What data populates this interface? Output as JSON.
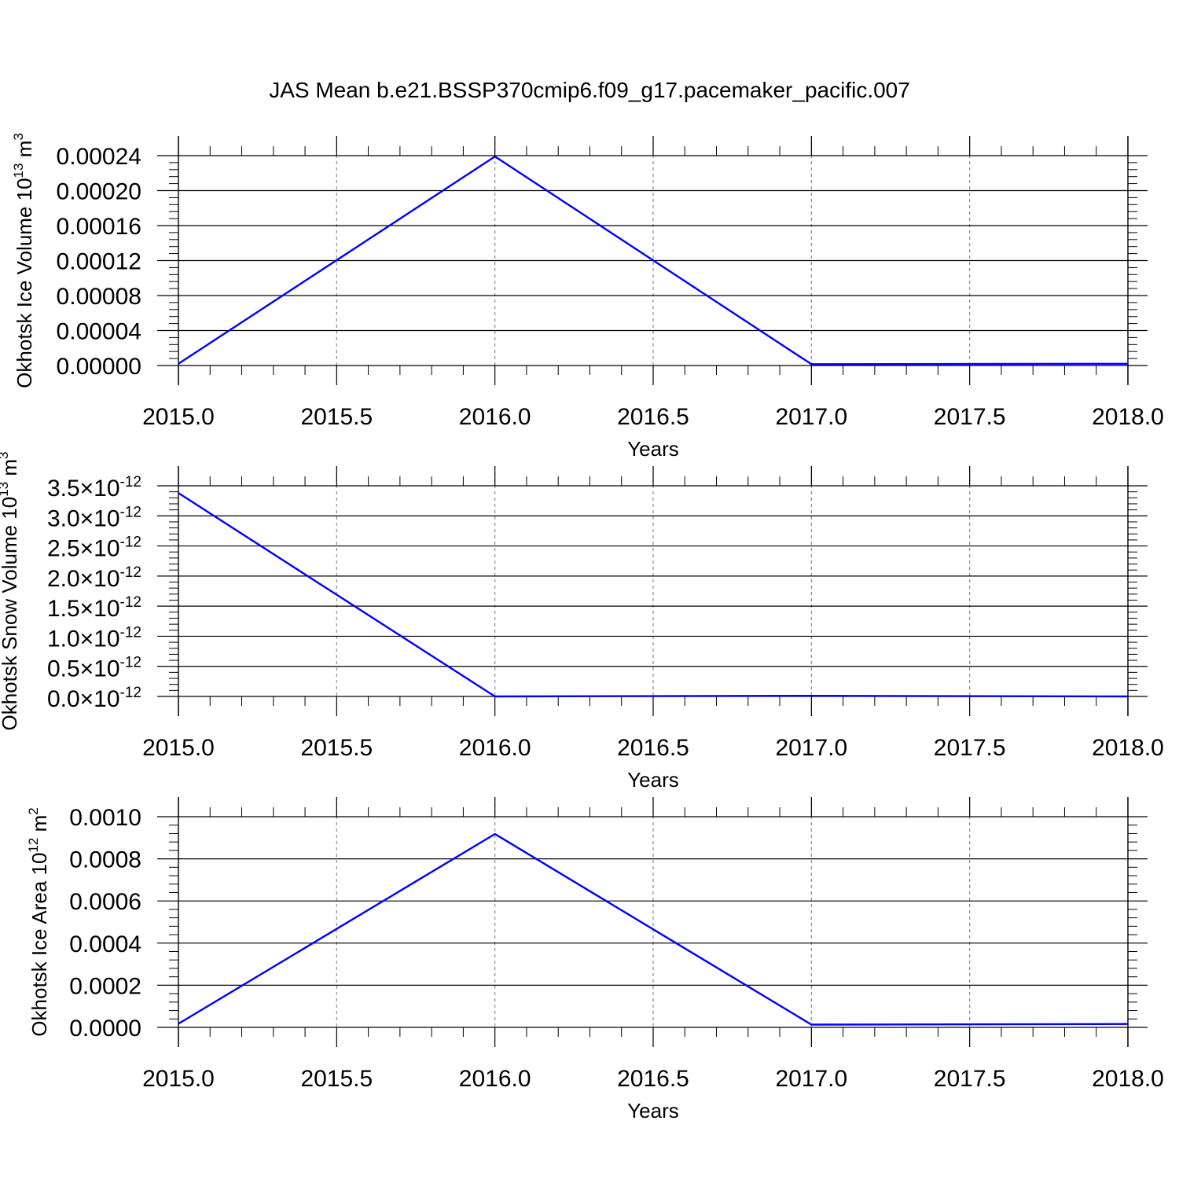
{
  "title": "JAS Mean b.e21.BSSP370cmip6.f09_g17.pacemaker_pacific.007",
  "line_color": "#0000ff",
  "chart_data": [
    {
      "type": "line",
      "xlabel": "Years",
      "ylabel": "Okhotsk Ice Volume 10",
      "ylabel_sup1": "13",
      "ylabel_mid": " m",
      "ylabel_sup2": "3",
      "xlim": [
        2015.0,
        2018.0
      ],
      "ylim": [
        0.0,
        0.00024
      ],
      "xticks": [
        "2015.0",
        "2015.5",
        "2016.0",
        "2016.5",
        "2017.0",
        "2017.5",
        "2018.0"
      ],
      "yticks": [
        "0.00000",
        "0.00004",
        "0.00008",
        "0.00012",
        "0.00016",
        "0.00020",
        "0.00024"
      ],
      "x": [
        2015,
        2016,
        2017,
        2018
      ],
      "series": [
        {
          "values": [
            2e-06,
            0.000239,
            1.5e-06,
            2e-06
          ]
        }
      ]
    },
    {
      "type": "line",
      "xlabel": "Years",
      "ylabel": "Okhotsk Snow Volume 10",
      "ylabel_sup1": "13",
      "ylabel_mid": " m",
      "ylabel_sup2": "3",
      "xlim": [
        2015.0,
        2018.0
      ],
      "ylim": [
        0.0,
        3.5e-12
      ],
      "xticks": [
        "2015.0",
        "2015.5",
        "2016.0",
        "2016.5",
        "2017.0",
        "2017.5",
        "2018.0"
      ],
      "yticks": [
        {
          "mant": "0.0",
          "exp": "-12"
        },
        {
          "mant": "0.5",
          "exp": "-12"
        },
        {
          "mant": "1.0",
          "exp": "-12"
        },
        {
          "mant": "1.5",
          "exp": "-12"
        },
        {
          "mant": "2.0",
          "exp": "-12"
        },
        {
          "mant": "2.5",
          "exp": "-12"
        },
        {
          "mant": "3.0",
          "exp": "-12"
        },
        {
          "mant": "3.5",
          "exp": "-12"
        }
      ],
      "x": [
        2015,
        2016,
        2017,
        2018
      ],
      "series": [
        {
          "values": [
            3.38e-12,
            0.0,
            1e-14,
            0.0
          ]
        }
      ]
    },
    {
      "type": "line",
      "xlabel": "Years",
      "ylabel": "Okhotsk Ice Area 10",
      "ylabel_sup1": "12",
      "ylabel_mid": " m",
      "ylabel_sup2": "2",
      "xlim": [
        2015.0,
        2018.0
      ],
      "ylim": [
        0.0,
        0.001
      ],
      "xticks": [
        "2015.0",
        "2015.5",
        "2016.0",
        "2016.5",
        "2017.0",
        "2017.5",
        "2018.0"
      ],
      "yticks": [
        "0.0000",
        "0.0002",
        "0.0004",
        "0.0006",
        "0.0008",
        "0.0010"
      ],
      "x": [
        2015,
        2016,
        2017,
        2018
      ],
      "series": [
        {
          "values": [
            1.7e-05,
            0.000918,
            1.3e-05,
            1.6e-05
          ]
        }
      ]
    }
  ]
}
